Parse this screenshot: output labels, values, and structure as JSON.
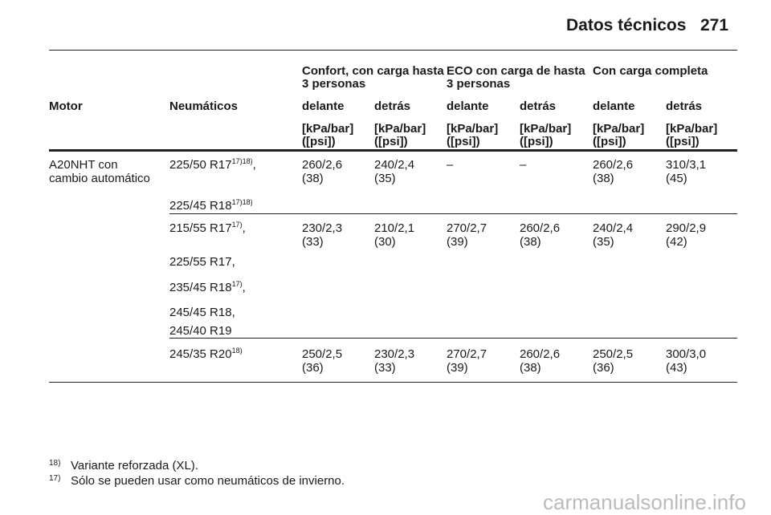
{
  "header": {
    "title": "Datos técnicos",
    "page": "271"
  },
  "table": {
    "group_headers": [
      "Confort, con carga hasta 3 personas",
      "ECO con carga de hasta 3 personas",
      "Con carga completa"
    ],
    "columns": [
      "Motor",
      "Neumáticos",
      "delante",
      "detrás",
      "delante",
      "detrás",
      "delante",
      "detrás"
    ],
    "units": [
      [
        "[kPa/bar]",
        "([psi])"
      ],
      [
        "[kPa/bar]",
        "([psi])"
      ],
      [
        "[kPa/bar]",
        "([psi])"
      ],
      [
        "[kPa/bar]",
        "([psi])"
      ],
      [
        "[kPa/bar]",
        "([psi])"
      ],
      [
        "[kPa/bar]",
        "([psi])"
      ]
    ],
    "rows": [
      {
        "motor": [
          "A20NHT con",
          "cambio automático"
        ],
        "tires": [
          {
            "text": "225/50 R17",
            "sup": "17)18)",
            "suffix": ","
          },
          {
            "text": "225/45 R18",
            "sup": "17)18)"
          }
        ],
        "values": [
          [
            "260/2,6",
            "(38)"
          ],
          [
            "240/2,4",
            "(35)"
          ],
          [
            "–"
          ],
          [
            "–"
          ],
          [
            "260/2,6",
            "(38)"
          ],
          [
            "310/3,1",
            "(45)"
          ]
        ]
      },
      {
        "tires": [
          {
            "text": "215/55 R17",
            "sup": "17)",
            "suffix": ","
          },
          {
            "text": "225/55 R17,"
          },
          {
            "text": "235/45 R18",
            "sup": "17)",
            "suffix": ","
          },
          {
            "text": "245/45 R18,"
          },
          {
            "text": "245/40 R19"
          }
        ],
        "values": [
          [
            "230/2,3",
            "(33)"
          ],
          [
            "210/2,1",
            "(30)"
          ],
          [
            "270/2,7",
            "(39)"
          ],
          [
            "260/2,6",
            "(38)"
          ],
          [
            "240/2,4",
            "(35)"
          ],
          [
            "290/2,9",
            "(42)"
          ]
        ]
      },
      {
        "tires": [
          {
            "text": "245/35 R20",
            "sup": "18)"
          }
        ],
        "values": [
          [
            "250/2,5",
            "(36)"
          ],
          [
            "230/2,3",
            "(33)"
          ],
          [
            "270/2,7",
            "(39)"
          ],
          [
            "260/2,6",
            "(38)"
          ],
          [
            "250/2,5",
            "(36)"
          ],
          [
            "300/3,0",
            "(43)"
          ]
        ]
      }
    ]
  },
  "footnotes": [
    {
      "mark": "18)",
      "text": "Variante reforzada (XL)."
    },
    {
      "mark": "17)",
      "text": "Sólo se pueden usar como neumáticos de invierno."
    }
  ],
  "watermark": "carmanualsonline.info"
}
